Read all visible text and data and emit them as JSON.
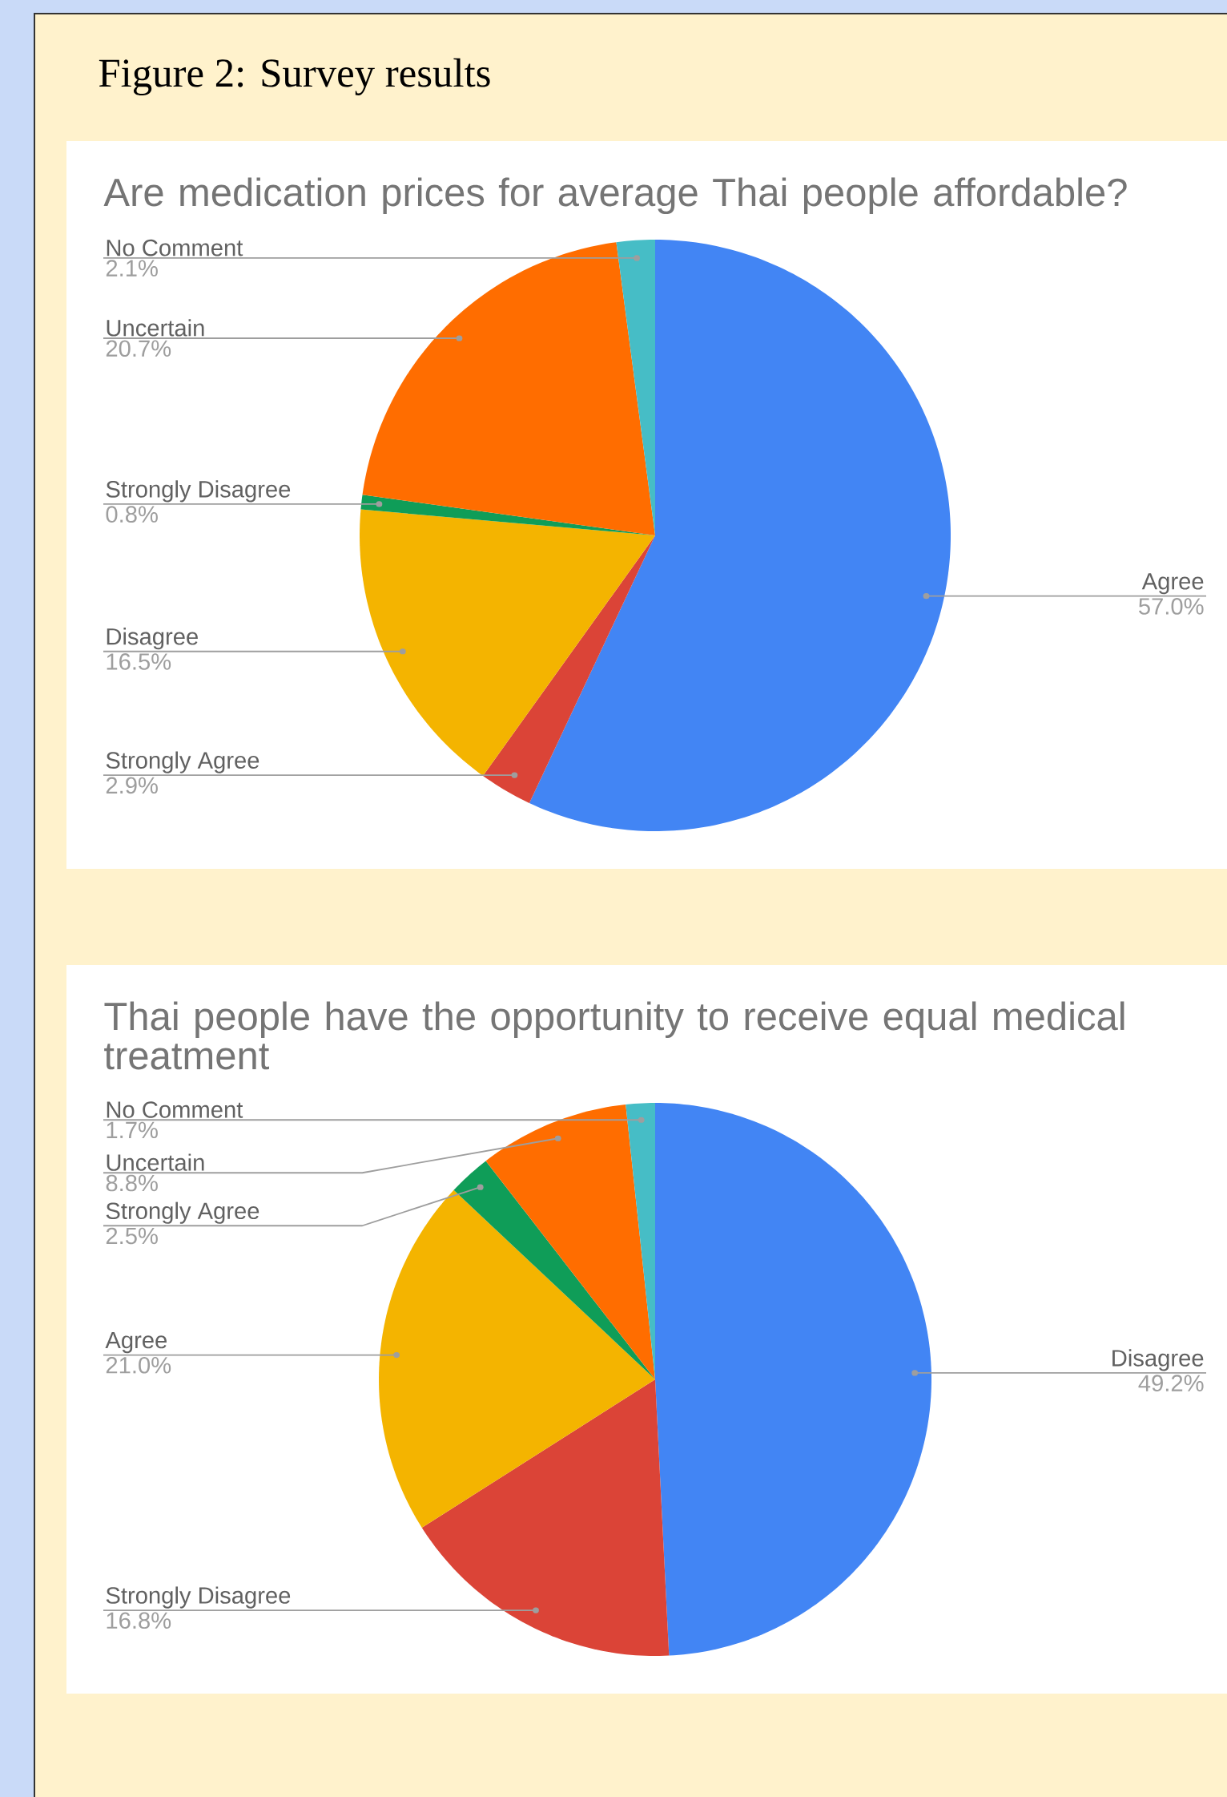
{
  "chart_data": [
    {
      "type": "pie",
      "title": "Are medication prices for average Thai people affordable?",
      "annotations": [
        "Figure 2: Survey results"
      ],
      "categories": [
        "Agree",
        "Strongly Agree",
        "Disagree",
        "Strongly Disagree",
        "Uncertain",
        "No Comment"
      ],
      "values": [
        57.0,
        2.9,
        16.5,
        0.8,
        20.7,
        2.1
      ],
      "value_labels": [
        "57.0%",
        "2.9%",
        "16.5%",
        "0.8%",
        "20.7%",
        "2.1%"
      ],
      "colors": [
        "#4285f4",
        "#db4437",
        "#f4b400",
        "#0f9d58",
        "#ff6d00",
        "#46bdc6"
      ],
      "legend": false
    },
    {
      "type": "pie",
      "title": "Thai people have the opportunity to receive equal medical treatment",
      "categories": [
        "Disagree",
        "Strongly Disagree",
        "Agree",
        "Strongly Agree",
        "Uncertain",
        "No Comment"
      ],
      "values": [
        49.2,
        16.8,
        21.0,
        2.5,
        8.8,
        1.7
      ],
      "value_labels": [
        "49.2%",
        "16.8%",
        "21.0%",
        "2.5%",
        "8.8%",
        "1.7%"
      ],
      "colors": [
        "#4285f4",
        "#db4437",
        "#f4b400",
        "#0f9d58",
        "#ff6d00",
        "#46bdc6"
      ],
      "legend": false
    }
  ]
}
